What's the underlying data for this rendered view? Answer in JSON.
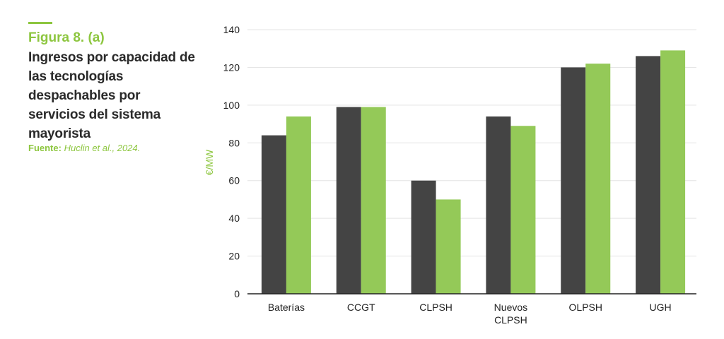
{
  "header": {
    "figure_label": "Figura 8. (a)",
    "title": "Ingresos por capacidad de las tecnologías despachables por servicios del sistema mayorista",
    "source_label": "Fuente:",
    "source_ref": "Huclin et al., 2024."
  },
  "colors": {
    "accent": "#8dc63f",
    "series_dark": "#444444",
    "series_green": "#94c958",
    "grid": "#e3e3e3",
    "axis": "#222222"
  },
  "chart_data": {
    "type": "bar",
    "title": "",
    "xlabel": "",
    "ylabel": "€/MW",
    "ylim": [
      0,
      140
    ],
    "yticks": [
      0,
      20,
      40,
      60,
      80,
      100,
      120,
      140
    ],
    "grid": true,
    "legend": "none",
    "categories": [
      [
        "Baterías"
      ],
      [
        "CCGT"
      ],
      [
        "CLPSH"
      ],
      [
        "Nuevos",
        "CLPSH"
      ],
      [
        "OLPSH"
      ],
      [
        "UGH"
      ]
    ],
    "series": [
      {
        "values": [
          84,
          99,
          60,
          94,
          120,
          126
        ]
      },
      {
        "values": [
          94,
          99,
          50,
          89,
          122,
          129
        ]
      }
    ]
  }
}
